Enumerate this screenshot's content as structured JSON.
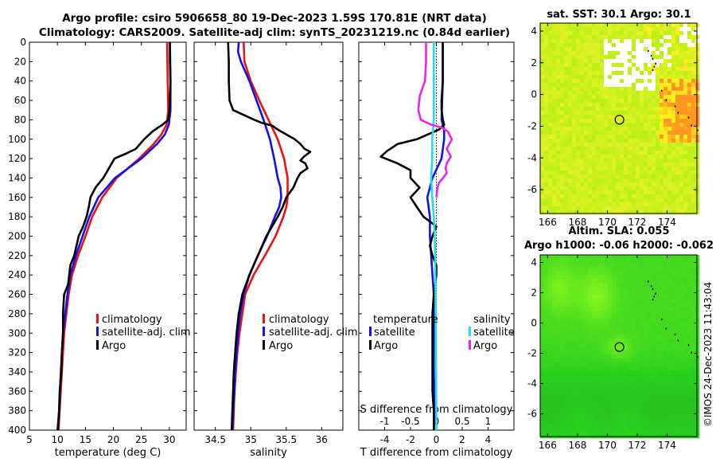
{
  "title": {
    "line1": "Argo profile: csiro 5906658_80 19-Dec-2023 1.59S 170.81E (NRT data)",
    "line2": "Climatology: CARS2009. Satellite-adj clim: synTS_20231219.nc (0.84d earlier)"
  },
  "depth_ticks": [
    0,
    20,
    40,
    60,
    80,
    100,
    120,
    140,
    160,
    180,
    200,
    220,
    240,
    260,
    280,
    300,
    320,
    340,
    360,
    380,
    400
  ],
  "colors": {
    "climatology": "#ee1111",
    "satellite": "#1111ee",
    "argo": "#000000",
    "sat_salinity": "#22ddee",
    "argo_salinity": "#ee22ee",
    "zero_line": "#000000"
  },
  "chart_data": [
    {
      "type": "line",
      "id": "temperature",
      "xlabel": "temperature (deg C)",
      "ylabel": "",
      "xlim": [
        5,
        33
      ],
      "ylim": [
        400,
        0
      ],
      "xticks": [
        5,
        10,
        15,
        20,
        25,
        30
      ],
      "legend": [
        "climatology",
        "satellite-adj. clim",
        "Argo"
      ],
      "series": [
        {
          "name": "climatology",
          "color": "#ee1111",
          "depth": [
            0,
            40,
            70,
            85,
            95,
            105,
            120,
            140,
            160,
            180,
            200,
            220,
            240,
            260,
            280,
            300,
            340,
            380,
            400
          ],
          "values": [
            29.6,
            29.7,
            29.8,
            29.5,
            28.6,
            27.2,
            24.6,
            20.6,
            18.0,
            16.2,
            15.0,
            13.7,
            12.6,
            12.0,
            11.6,
            11.2,
            10.8,
            10.4,
            10.2
          ]
        },
        {
          "name": "satellite-adj. clim",
          "color": "#1111ee",
          "depth": [
            0,
            40,
            70,
            85,
            95,
            105,
            120,
            140,
            160,
            180,
            200,
            220,
            240,
            260,
            280,
            300,
            340,
            380,
            400
          ],
          "values": [
            30.1,
            30.2,
            30.2,
            29.9,
            29.2,
            27.8,
            25.0,
            20.3,
            17.3,
            15.7,
            14.5,
            13.3,
            12.3,
            11.8,
            11.4,
            11.0,
            10.6,
            10.3,
            10.0
          ]
        },
        {
          "name": "Argo",
          "color": "#000000",
          "depth": [
            0,
            20,
            40,
            60,
            70,
            80,
            85,
            88,
            92,
            100,
            110,
            115,
            120,
            125,
            130,
            140,
            150,
            160,
            170,
            180,
            190,
            200,
            210,
            220,
            230,
            240,
            250,
            260,
            280,
            300,
            320,
            340,
            360,
            380,
            400
          ],
          "values": [
            30.1,
            30.1,
            30.2,
            30.1,
            30.0,
            29.8,
            28.8,
            28.0,
            27.0,
            25.5,
            24.0,
            22.2,
            20.2,
            19.7,
            19.2,
            18.2,
            16.8,
            15.9,
            15.6,
            15.2,
            14.6,
            13.8,
            13.4,
            13.0,
            12.3,
            12.1,
            11.9,
            11.2,
            11.0,
            11.0,
            10.8,
            10.7,
            10.4,
            10.3,
            10.1
          ]
        }
      ]
    },
    {
      "type": "line",
      "id": "salinity",
      "xlabel": "salinity",
      "ylabel": "",
      "xlim": [
        34.2,
        36.3
      ],
      "ylim": [
        400,
        0
      ],
      "xticks": [
        34.5,
        35,
        35.5,
        36
      ],
      "legend": [
        "climatology",
        "satellite-adj. clim",
        "Argo"
      ],
      "series": [
        {
          "name": "climatology",
          "color": "#ee1111",
          "depth": [
            0,
            20,
            40,
            60,
            80,
            100,
            120,
            140,
            160,
            170,
            180,
            200,
            220,
            240,
            260,
            280,
            300,
            320,
            340,
            360,
            380,
            400
          ],
          "values": [
            34.9,
            34.91,
            35.0,
            35.12,
            35.25,
            35.38,
            35.47,
            35.52,
            35.52,
            35.5,
            35.46,
            35.35,
            35.2,
            35.04,
            34.92,
            34.88,
            34.84,
            34.81,
            34.79,
            34.77,
            34.76,
            34.75
          ]
        },
        {
          "name": "satellite-adj. clim",
          "color": "#1111ee",
          "depth": [
            0,
            10,
            20,
            40,
            60,
            80,
            100,
            120,
            140,
            150,
            160,
            170,
            180,
            200,
            220,
            240,
            260,
            280,
            300,
            320,
            340,
            360,
            380,
            400
          ],
          "values": [
            34.83,
            34.82,
            34.86,
            34.98,
            35.08,
            35.18,
            35.27,
            35.33,
            35.38,
            35.42,
            35.43,
            35.4,
            35.34,
            35.23,
            35.1,
            34.98,
            34.9,
            34.85,
            34.82,
            34.8,
            34.78,
            34.77,
            34.75,
            34.74
          ]
        },
        {
          "name": "Argo",
          "color": "#000000",
          "depth": [
            0,
            20,
            40,
            60,
            70,
            75,
            80,
            83,
            86,
            90,
            95,
            100,
            105,
            110,
            113,
            118,
            122,
            125,
            130,
            135,
            140,
            150,
            160,
            170,
            180,
            200,
            220,
            240,
            260,
            280,
            300,
            320,
            340,
            360,
            380,
            400
          ],
          "values": [
            34.68,
            34.69,
            34.69,
            34.7,
            34.75,
            34.9,
            35.05,
            35.15,
            35.3,
            35.38,
            35.5,
            35.62,
            35.7,
            35.76,
            35.84,
            35.75,
            35.7,
            35.77,
            35.8,
            35.7,
            35.66,
            35.6,
            35.5,
            35.45,
            35.38,
            35.22,
            35.1,
            34.98,
            34.88,
            34.83,
            34.8,
            34.78,
            34.76,
            34.75,
            34.74,
            34.73
          ]
        }
      ]
    },
    {
      "type": "line",
      "id": "difference",
      "xlabel": "T difference from climatology",
      "top_xlabel": "S difference from climatology",
      "xlim": [
        -6,
        6
      ],
      "ylim": [
        400,
        0
      ],
      "xticks": [
        -4,
        -2,
        0,
        2,
        4
      ],
      "s_ticks": [
        -1,
        -0.5,
        0,
        0.5,
        1
      ],
      "legend_temperature_title": "temperature",
      "legend_salinity_title": "salinity",
      "legend": [
        "satellite",
        "Argo",
        "satellite",
        "Argo"
      ],
      "series": [
        {
          "name": "T satellite",
          "color": "#1111ee",
          "depth": [
            0,
            40,
            80,
            90,
            100,
            120,
            140,
            160,
            180,
            200,
            220,
            240,
            260,
            280,
            300,
            340,
            380,
            400
          ],
          "values": [
            0.5,
            0.5,
            0.4,
            0.6,
            0.6,
            0.4,
            -0.3,
            -0.7,
            -0.5,
            -0.5,
            -0.4,
            -0.3,
            -0.2,
            -0.2,
            -0.2,
            -0.2,
            -0.1,
            -0.2
          ]
        },
        {
          "name": "T Argo",
          "color": "#000000",
          "depth": [
            0,
            20,
            40,
            60,
            70,
            80,
            85,
            90,
            100,
            105,
            112,
            118,
            125,
            132,
            140,
            150,
            160,
            170,
            180,
            190,
            200,
            210,
            220,
            230,
            240,
            250,
            260,
            280,
            300,
            320,
            340,
            360,
            380,
            400
          ],
          "values": [
            0.5,
            0.5,
            0.5,
            0.4,
            0.4,
            0.5,
            0.6,
            0.2,
            -1.5,
            -3.0,
            -3.8,
            -4.3,
            -3.0,
            -2.0,
            -2.0,
            -1.3,
            -2.0,
            -1.5,
            -1.0,
            0.0,
            -0.3,
            -0.5,
            -0.3,
            0.0,
            0.0,
            -0.1,
            -0.2,
            -0.3,
            -0.3,
            -0.3,
            -0.3,
            -0.3,
            -0.2,
            -0.2
          ]
        },
        {
          "name": "S satellite",
          "color": "#22ddee",
          "depth": [
            0,
            20,
            40,
            60,
            80,
            100,
            120,
            140,
            160,
            180,
            200,
            240,
            300,
            400
          ],
          "values": [
            -0.05,
            -0.05,
            -0.05,
            -0.05,
            -0.05,
            -0.08,
            -0.08,
            -0.1,
            -0.08,
            -0.05,
            -0.03,
            -0.02,
            -0.01,
            0.0
          ]
        },
        {
          "name": "S Argo",
          "color": "#ee22ee",
          "depth": [
            0,
            20,
            40,
            55,
            70,
            80,
            85,
            88,
            92,
            100,
            110,
            118,
            125,
            130,
            135,
            140,
            145,
            150,
            160
          ],
          "values": [
            -0.2,
            -0.2,
            -0.22,
            -0.32,
            -0.35,
            -0.3,
            -0.1,
            0.1,
            0.22,
            0.3,
            0.2,
            0.28,
            0.2,
            0.18,
            0.2,
            0.13,
            0.05,
            0.02,
            0.0
          ]
        }
      ]
    },
    {
      "type": "heatmap",
      "id": "sst_map",
      "title": "sat. SST: 30.1 Argo: 30.1",
      "xticks": [
        166,
        168,
        170,
        172,
        174
      ],
      "yticks": [
        4,
        2,
        0,
        -2,
        -4,
        -6
      ],
      "xlim": [
        165.5,
        176
      ],
      "ylim": [
        -7.5,
        4.5
      ],
      "argo_position": [
        170.81,
        -1.59
      ]
    },
    {
      "type": "heatmap",
      "id": "sla_map",
      "title_line1": "Altim. SLA: 0.055",
      "title_line2": "Argo h1000: -0.06 h2000: -0.062",
      "xticks": [
        166,
        168,
        170,
        172,
        174
      ],
      "yticks": [
        4,
        2,
        0,
        -2,
        -4,
        -6
      ],
      "xlim": [
        165.5,
        176
      ],
      "ylim": [
        -7.5,
        4.5
      ],
      "argo_position": [
        170.81,
        -1.59
      ]
    }
  ],
  "credit": "©IMOS 24-Dec-2023 11:43:04"
}
